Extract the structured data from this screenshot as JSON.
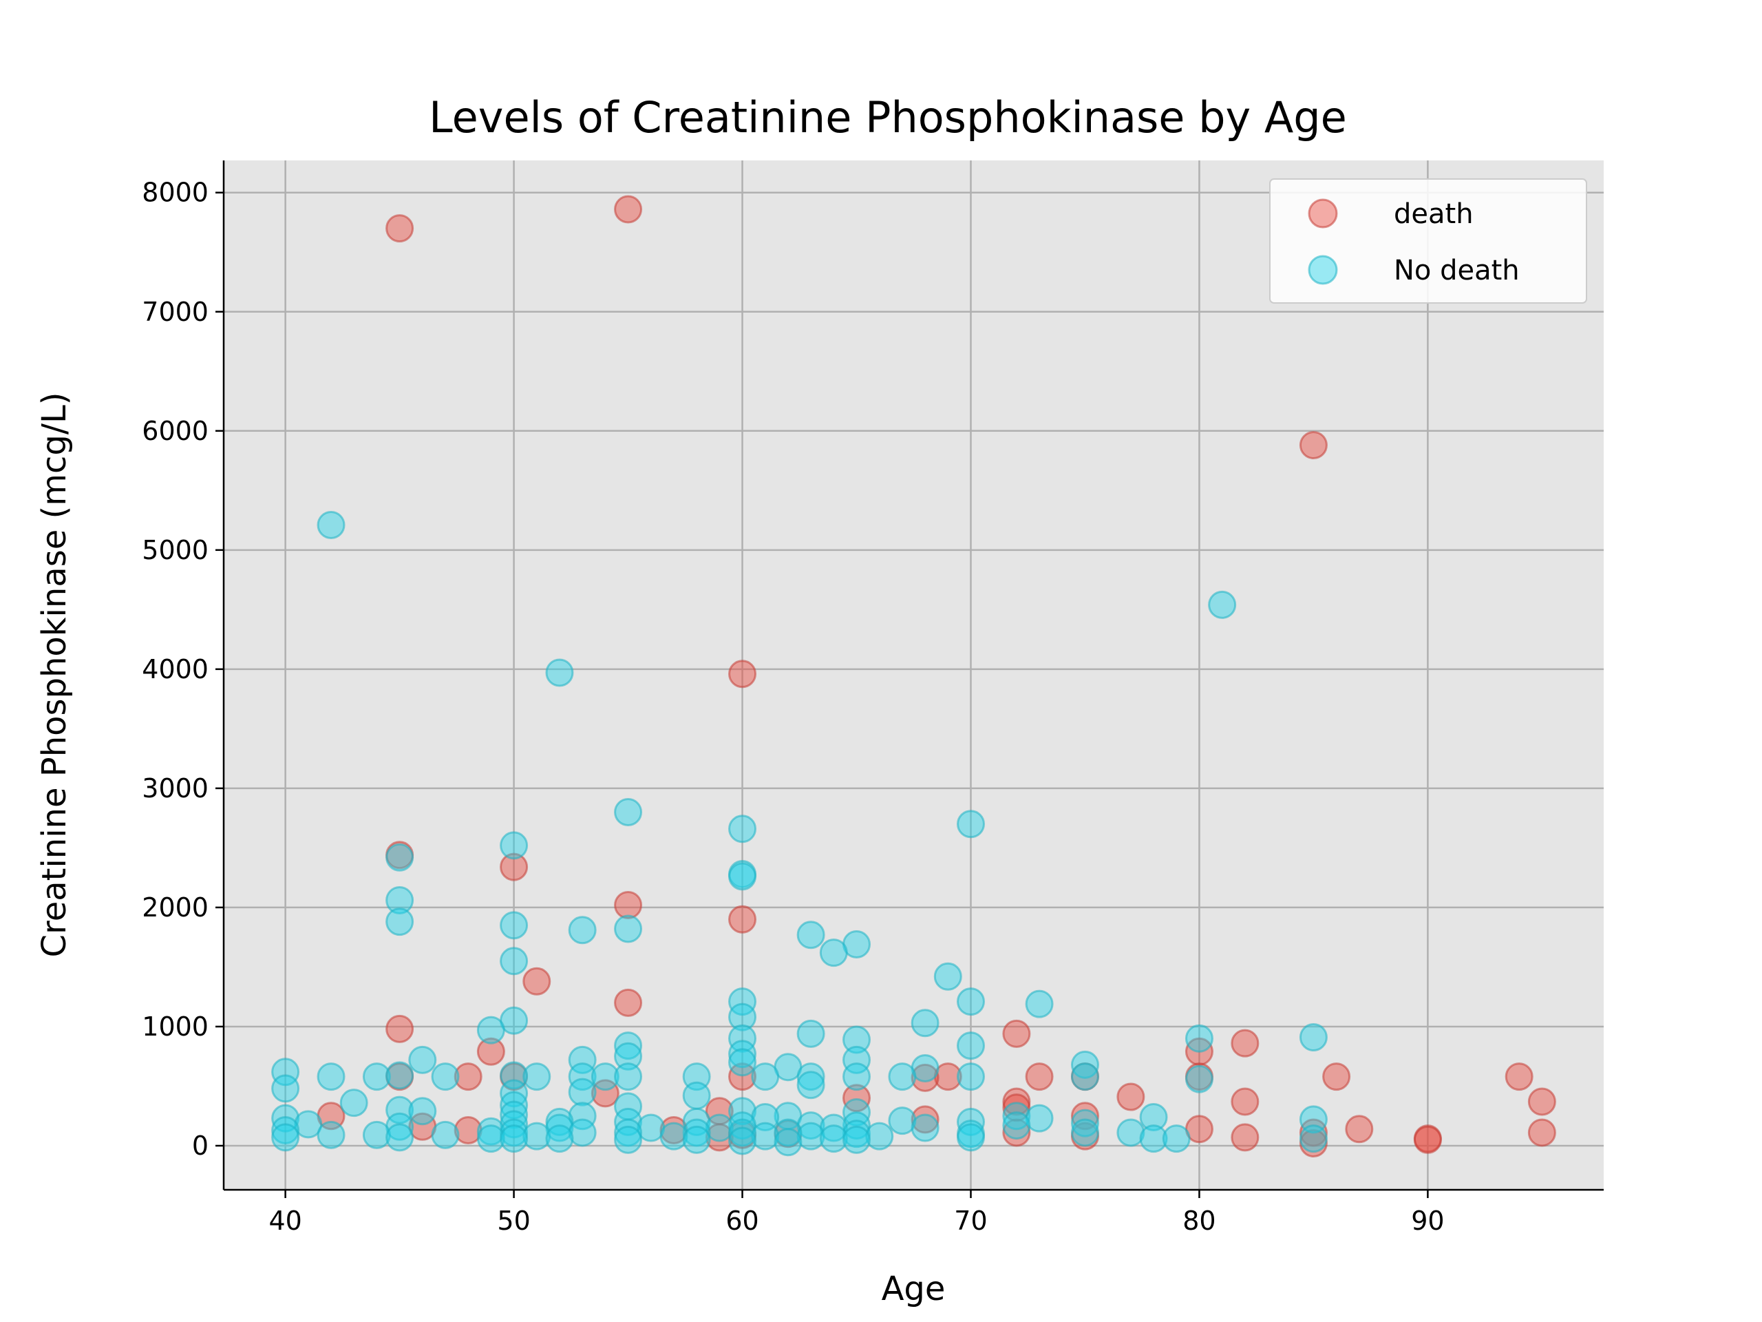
{
  "chart_data": {
    "type": "scatter",
    "title": "Levels of Creatinine Phosphokinase by Age",
    "xlabel": "Age",
    "ylabel": "Creatinine Phosphokinase (mcg/L)",
    "xlim": [
      37.3,
      97.7
    ],
    "ylim": [
      -370,
      8270
    ],
    "xticks": [
      40,
      50,
      60,
      70,
      80,
      90
    ],
    "yticks": [
      0,
      1000,
      2000,
      3000,
      4000,
      5000,
      6000,
      7000,
      8000
    ],
    "grid": true,
    "background": "#e5e5e5",
    "legend_position": "top-right",
    "series": [
      {
        "name": "death",
        "color": "#e8493f",
        "points": [
          [
            45,
            7700
          ],
          [
            55,
            7860
          ],
          [
            85,
            5880
          ],
          [
            60,
            3960
          ],
          [
            45,
            2440
          ],
          [
            50,
            2340
          ],
          [
            55,
            2020
          ],
          [
            60,
            1900
          ],
          [
            51,
            1380
          ],
          [
            55,
            1200
          ],
          [
            45,
            980
          ],
          [
            72,
            940
          ],
          [
            82,
            860
          ],
          [
            49,
            790
          ],
          [
            80,
            790
          ],
          [
            80,
            580
          ],
          [
            86,
            580
          ],
          [
            94,
            580
          ],
          [
            48,
            580
          ],
          [
            45,
            580
          ],
          [
            50,
            580
          ],
          [
            60,
            580
          ],
          [
            69,
            580
          ],
          [
            73,
            580
          ],
          [
            75,
            580
          ],
          [
            68,
            570
          ],
          [
            54,
            440
          ],
          [
            65,
            400
          ],
          [
            77,
            410
          ],
          [
            72,
            370
          ],
          [
            82,
            370
          ],
          [
            95,
            370
          ],
          [
            72,
            320
          ],
          [
            59,
            290
          ],
          [
            42,
            250
          ],
          [
            75,
            250
          ],
          [
            68,
            220
          ],
          [
            46,
            160
          ],
          [
            80,
            140
          ],
          [
            48,
            130
          ],
          [
            57,
            130
          ],
          [
            87,
            140
          ],
          [
            85,
            110
          ],
          [
            95,
            110
          ],
          [
            60,
            90
          ],
          [
            62,
            100
          ],
          [
            72,
            110
          ],
          [
            75,
            80
          ],
          [
            59,
            70
          ],
          [
            82,
            70
          ],
          [
            90,
            60
          ],
          [
            90,
            50
          ],
          [
            85,
            20
          ]
        ]
      },
      {
        "name": "No death",
        "color": "#22d3e8",
        "points": [
          [
            42,
            5210
          ],
          [
            81,
            4540
          ],
          [
            52,
            3970
          ],
          [
            55,
            2800
          ],
          [
            70,
            2700
          ],
          [
            60,
            2660
          ],
          [
            50,
            2520
          ],
          [
            45,
            2420
          ],
          [
            60,
            2280
          ],
          [
            60,
            2260
          ],
          [
            45,
            2060
          ],
          [
            45,
            1880
          ],
          [
            50,
            1850
          ],
          [
            55,
            1820
          ],
          [
            53,
            1810
          ],
          [
            63,
            1770
          ],
          [
            65,
            1690
          ],
          [
            64,
            1620
          ],
          [
            50,
            1550
          ],
          [
            69,
            1420
          ],
          [
            60,
            1210
          ],
          [
            70,
            1210
          ],
          [
            73,
            1190
          ],
          [
            60,
            1080
          ],
          [
            50,
            1050
          ],
          [
            68,
            1030
          ],
          [
            49,
            970
          ],
          [
            63,
            940
          ],
          [
            85,
            910
          ],
          [
            60,
            900
          ],
          [
            65,
            890
          ],
          [
            80,
            900
          ],
          [
            55,
            840
          ],
          [
            70,
            840
          ],
          [
            60,
            770
          ],
          [
            55,
            750
          ],
          [
            46,
            720
          ],
          [
            53,
            720
          ],
          [
            65,
            720
          ],
          [
            60,
            700
          ],
          [
            75,
            680
          ],
          [
            40,
            620
          ],
          [
            68,
            650
          ],
          [
            62,
            660
          ],
          [
            42,
            580
          ],
          [
            44,
            580
          ],
          [
            45,
            590
          ],
          [
            47,
            580
          ],
          [
            50,
            590
          ],
          [
            51,
            580
          ],
          [
            53,
            580
          ],
          [
            54,
            580
          ],
          [
            55,
            580
          ],
          [
            58,
            580
          ],
          [
            61,
            580
          ],
          [
            63,
            580
          ],
          [
            65,
            580
          ],
          [
            67,
            580
          ],
          [
            70,
            580
          ],
          [
            75,
            580
          ],
          [
            80,
            560
          ],
          [
            63,
            510
          ],
          [
            40,
            480
          ],
          [
            53,
            450
          ],
          [
            50,
            440
          ],
          [
            58,
            420
          ],
          [
            43,
            360
          ],
          [
            50,
            340
          ],
          [
            55,
            330
          ],
          [
            45,
            300
          ],
          [
            46,
            290
          ],
          [
            60,
            290
          ],
          [
            65,
            280
          ],
          [
            50,
            260
          ],
          [
            53,
            250
          ],
          [
            62,
            250
          ],
          [
            72,
            250
          ],
          [
            61,
            240
          ],
          [
            78,
            240
          ],
          [
            40,
            230
          ],
          [
            73,
            230
          ],
          [
            85,
            220
          ],
          [
            67,
            210
          ],
          [
            52,
            200
          ],
          [
            55,
            200
          ],
          [
            58,
            200
          ],
          [
            70,
            200
          ],
          [
            75,
            190
          ],
          [
            41,
            180
          ],
          [
            50,
            180
          ],
          [
            60,
            170
          ],
          [
            63,
            170
          ],
          [
            65,
            170
          ],
          [
            72,
            170
          ],
          [
            45,
            160
          ],
          [
            52,
            150
          ],
          [
            56,
            150
          ],
          [
            59,
            150
          ],
          [
            64,
            150
          ],
          [
            68,
            150
          ],
          [
            40,
            130
          ],
          [
            49,
            120
          ],
          [
            50,
            110
          ],
          [
            53,
            110
          ],
          [
            55,
            110
          ],
          [
            58,
            110
          ],
          [
            60,
            110
          ],
          [
            62,
            110
          ],
          [
            65,
            100
          ],
          [
            70,
            100
          ],
          [
            75,
            110
          ],
          [
            77,
            110
          ],
          [
            42,
            90
          ],
          [
            44,
            90
          ],
          [
            47,
            90
          ],
          [
            51,
            80
          ],
          [
            57,
            80
          ],
          [
            61,
            80
          ],
          [
            63,
            80
          ],
          [
            66,
            80
          ],
          [
            70,
            70
          ],
          [
            78,
            60
          ],
          [
            79,
            60
          ],
          [
            85,
            60
          ],
          [
            40,
            70
          ],
          [
            45,
            70
          ],
          [
            49,
            60
          ],
          [
            50,
            60
          ],
          [
            52,
            60
          ],
          [
            55,
            50
          ],
          [
            58,
            50
          ],
          [
            60,
            40
          ],
          [
            62,
            30
          ],
          [
            64,
            60
          ],
          [
            65,
            50
          ]
        ]
      }
    ]
  }
}
